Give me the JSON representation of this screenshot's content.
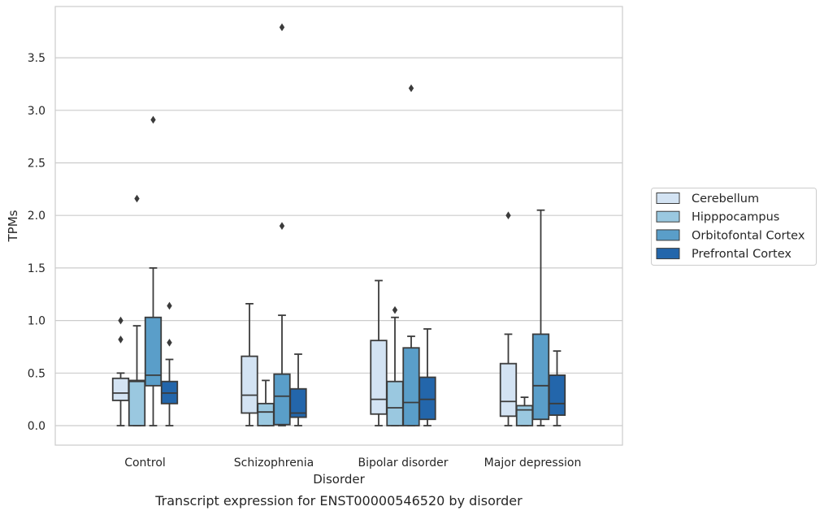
{
  "chart_data": {
    "type": "box",
    "caption": "Transcript expression for ENST00000546520 by disorder",
    "xlabel": "Disorder",
    "ylabel": "TPMs",
    "ylim": [
      -0.18,
      3.98
    ],
    "yticks": [
      "0.0",
      "0.5",
      "1.0",
      "1.5",
      "2.0",
      "2.5",
      "3.0",
      "3.5"
    ],
    "grid": true,
    "legend_position": "right",
    "categories": [
      "Control",
      "Schizophrenia",
      "Bipolar disorder",
      "Major depression"
    ],
    "series": [
      {
        "name": "Cerebellum",
        "color": "#d3e3f3",
        "boxes": [
          {
            "whisker_low": 0.0,
            "q1": 0.24,
            "median": 0.31,
            "q3": 0.45,
            "whisker_high": 0.5,
            "outliers": [
              0.82,
              1.0
            ]
          },
          {
            "whisker_low": 0.0,
            "q1": 0.12,
            "median": 0.29,
            "q3": 0.66,
            "whisker_high": 1.16,
            "outliers": []
          },
          {
            "whisker_low": 0.0,
            "q1": 0.11,
            "median": 0.25,
            "q3": 0.81,
            "whisker_high": 1.38,
            "outliers": []
          },
          {
            "whisker_low": 0.0,
            "q1": 0.09,
            "median": 0.23,
            "q3": 0.59,
            "whisker_high": 0.87,
            "outliers": [
              2.0
            ]
          }
        ]
      },
      {
        "name": "Hipppocampus",
        "color": "#9ac8e0",
        "boxes": [
          {
            "whisker_low": 0.0,
            "q1": 0.0,
            "median": 0.42,
            "q3": 0.43,
            "whisker_high": 0.95,
            "outliers": [
              2.16
            ]
          },
          {
            "whisker_low": 0.0,
            "q1": 0.0,
            "median": 0.13,
            "q3": 0.21,
            "whisker_high": 0.43,
            "outliers": []
          },
          {
            "whisker_low": 0.0,
            "q1": 0.0,
            "median": 0.17,
            "q3": 0.42,
            "whisker_high": 1.03,
            "outliers": [
              1.1
            ]
          },
          {
            "whisker_low": 0.0,
            "q1": 0.0,
            "median": 0.15,
            "q3": 0.19,
            "whisker_high": 0.27,
            "outliers": []
          }
        ]
      },
      {
        "name": "Orbitofontal Cortex",
        "color": "#5a9ec9",
        "boxes": [
          {
            "whisker_low": 0.0,
            "q1": 0.38,
            "median": 0.48,
            "q3": 1.03,
            "whisker_high": 1.5,
            "outliers": [
              2.91
            ]
          },
          {
            "whisker_low": 0.0,
            "q1": 0.01,
            "median": 0.28,
            "q3": 0.49,
            "whisker_high": 1.05,
            "outliers": [
              1.9,
              3.79
            ]
          },
          {
            "whisker_low": 0.0,
            "q1": 0.0,
            "median": 0.22,
            "q3": 0.74,
            "whisker_high": 0.85,
            "outliers": [
              3.21
            ]
          },
          {
            "whisker_low": 0.0,
            "q1": 0.06,
            "median": 0.38,
            "q3": 0.87,
            "whisker_high": 2.05,
            "outliers": []
          }
        ]
      },
      {
        "name": "Prefrontal Cortex",
        "color": "#2366ab",
        "boxes": [
          {
            "whisker_low": 0.0,
            "q1": 0.21,
            "median": 0.31,
            "q3": 0.42,
            "whisker_high": 0.63,
            "outliers": [
              0.79,
              1.14
            ]
          },
          {
            "whisker_low": 0.0,
            "q1": 0.08,
            "median": 0.12,
            "q3": 0.35,
            "whisker_high": 0.68,
            "outliers": []
          },
          {
            "whisker_low": 0.0,
            "q1": 0.06,
            "median": 0.25,
            "q3": 0.46,
            "whisker_high": 0.92,
            "outliers": []
          },
          {
            "whisker_low": 0.0,
            "q1": 0.1,
            "median": 0.21,
            "q3": 0.48,
            "whisker_high": 0.71,
            "outliers": []
          }
        ]
      }
    ]
  }
}
